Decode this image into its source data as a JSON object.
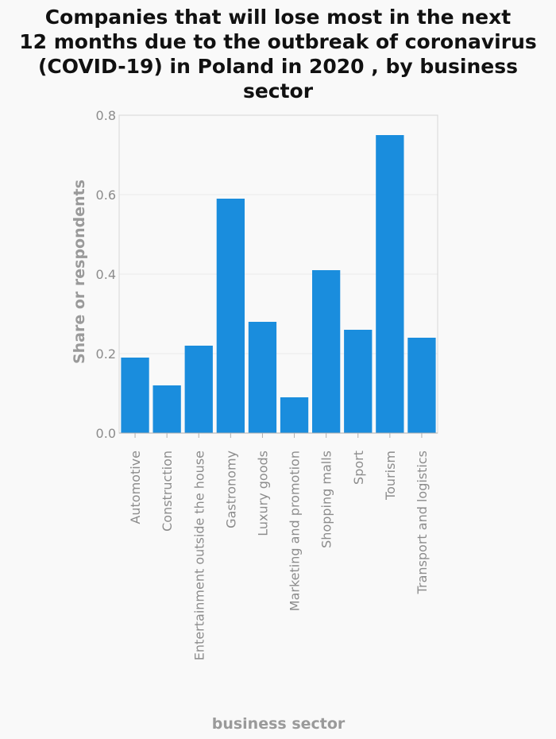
{
  "chart_data": {
    "type": "bar",
    "title_lines": [
      "Companies that will lose most in the next",
      "12 months due to the outbreak of coronavirus",
      "(COVID-19) in Poland in 2020 , by business",
      "sector"
    ],
    "xlabel": "business sector",
    "ylabel": "Share or respondents",
    "categories": [
      "Automotive",
      "Construction",
      "Entertainment outside the house",
      "Gastronomy",
      "Luxury goods",
      "Marketing and promotion",
      "Shopping malls",
      "Sport",
      "Tourism",
      "Transport and logistics"
    ],
    "values": [
      0.19,
      0.12,
      0.22,
      0.59,
      0.28,
      0.09,
      0.41,
      0.26,
      0.75,
      0.24
    ],
    "ylim": [
      0,
      0.8
    ],
    "yticks": [
      "0.0",
      "0.2",
      "0.4",
      "0.6",
      "0.8"
    ],
    "grid": true,
    "bar_color": "#1a8ddd"
  }
}
